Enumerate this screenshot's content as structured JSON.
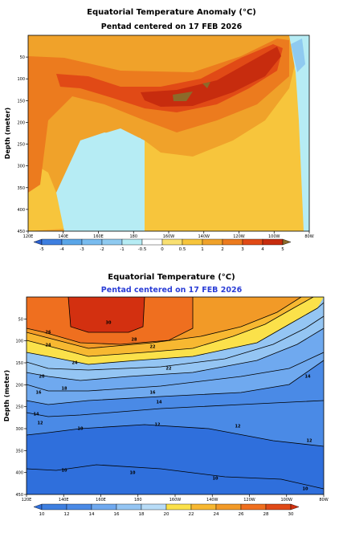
{
  "chart_data": [
    {
      "type": "heatmap",
      "title": "Equatorial Temperature Anomaly (°C)",
      "subtitle": "Pentad centered on 17 FEB 2026",
      "ylabel": "Depth (meter)",
      "xlabel": "",
      "x_ticks": [
        "120E",
        "140E",
        "160E",
        "180",
        "160W",
        "140W",
        "120W",
        "100W",
        "80W"
      ],
      "y_ticks": [
        "50",
        "100",
        "150",
        "200",
        "250",
        "300",
        "350",
        "400",
        "450"
      ],
      "colorbar_ticks": [
        "-5",
        "-4",
        "-3",
        "-2",
        "-1",
        "-0.5",
        "0",
        "0.5",
        "1",
        "2",
        "3",
        "4",
        "5"
      ],
      "xlim": [
        120,
        280
      ],
      "ylim": [
        0,
        450
      ]
    },
    {
      "type": "heatmap",
      "title": "Equatorial Temperature (°C)",
      "subtitle": "Pentad centered on 17 FEB 2026",
      "ylabel": "Depth (meter)",
      "xlabel": "",
      "x_ticks": [
        "120E",
        "140E",
        "160E",
        "180",
        "160W",
        "140W",
        "120W",
        "100W",
        "80W"
      ],
      "y_ticks": [
        "50",
        "100",
        "150",
        "200",
        "250",
        "300",
        "350",
        "400",
        "450"
      ],
      "colorbar_ticks": [
        "10",
        "12",
        "14",
        "16",
        "18",
        "20",
        "22",
        "24",
        "26",
        "28",
        "30"
      ],
      "contour_labels": [
        "30",
        "28",
        "26",
        "24",
        "22",
        "20",
        "18",
        "16",
        "14",
        "12",
        "10"
      ],
      "xlim": [
        120,
        280
      ],
      "ylim": [
        0,
        450
      ]
    }
  ],
  "colors": {
    "neg_light": "#b6ecf4",
    "neg_mid": "#8fcaf0",
    "neg_dark": "#5aa6e8",
    "pos_light": "#f7c53c",
    "pos_mid": "#f0a22a",
    "pos_orange": "#ec7b1e",
    "pos_red": "#e14a16",
    "pos_dark": "#c72c0e",
    "pos_brown": "#8c6a2a"
  }
}
